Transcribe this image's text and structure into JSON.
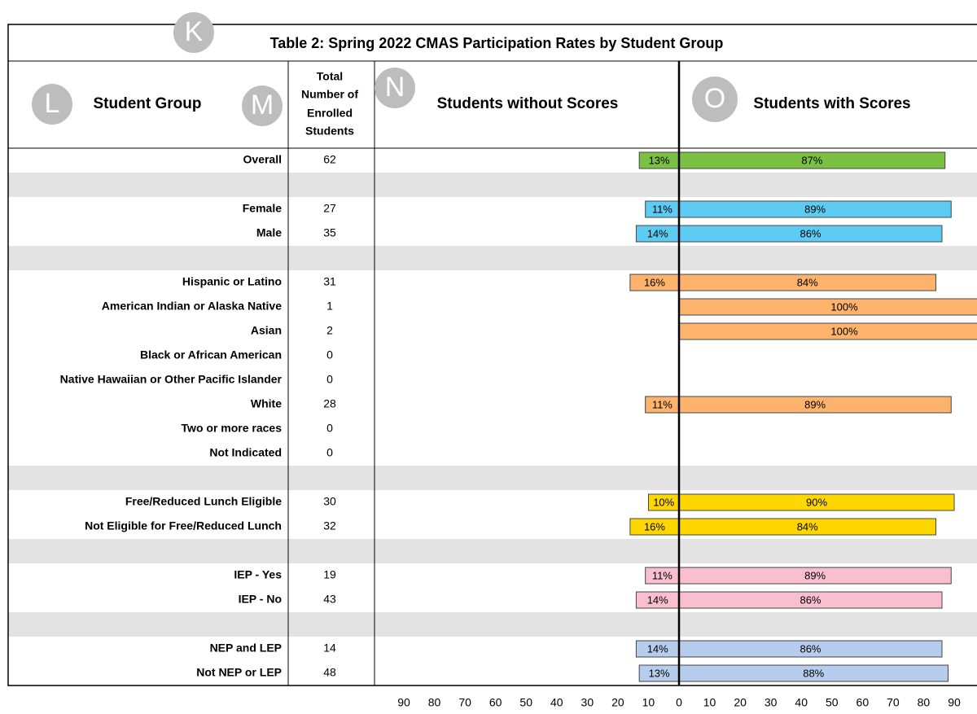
{
  "title": "Table 2: Spring 2022 CMAS Participation Rates by Student Group",
  "markers": [
    "K",
    "L",
    "M",
    "N",
    "O"
  ],
  "headers": {
    "group": "Student Group",
    "enrolled": [
      "Total",
      "Number of",
      "Enrolled",
      "Students"
    ],
    "without": "Students without Scores",
    "with": "Students with Scores"
  },
  "chart_data": {
    "type": "diverging-bar",
    "xlim": [
      0,
      90
    ],
    "left_xticks": [
      90,
      80,
      70,
      60,
      50,
      40,
      30,
      20,
      10
    ],
    "right_xticks": [
      0,
      10,
      20,
      30,
      40,
      50,
      60,
      70,
      80,
      90
    ],
    "groups": [
      {
        "color": "#7ac143",
        "rows": [
          {
            "label": "Overall",
            "enrolled": 62,
            "without": 13,
            "without_label": "13%",
            "with": 87,
            "with_label": "87%"
          }
        ]
      },
      {
        "color": "#5ecbf3",
        "rows": [
          {
            "label": "Female",
            "enrolled": 27,
            "without": 11,
            "without_label": "11%",
            "with": 89,
            "with_label": "89%"
          },
          {
            "label": "Male",
            "enrolled": 35,
            "without": 14,
            "without_label": "14%",
            "with": 86,
            "with_label": "86%"
          }
        ]
      },
      {
        "color": "#fdb36b",
        "rows": [
          {
            "label": "Hispanic or Latino",
            "enrolled": 31,
            "without": 16,
            "without_label": "16%",
            "with": 84,
            "with_label": "84%"
          },
          {
            "label": "American Indian or Alaska Native",
            "enrolled": 1,
            "with": 100,
            "with_label": "100%"
          },
          {
            "label": "Asian",
            "enrolled": 2,
            "with": 100,
            "with_label": "100%"
          },
          {
            "label": "Black or African American",
            "enrolled": 0
          },
          {
            "label": "Native Hawaiian or Other Pacific Islander",
            "enrolled": 0
          },
          {
            "label": "White",
            "enrolled": 28,
            "without": 11,
            "without_label": "11%",
            "with": 89,
            "with_label": "89%"
          },
          {
            "label": "Two or more races",
            "enrolled": 0
          },
          {
            "label": "Not Indicated",
            "enrolled": 0
          }
        ]
      },
      {
        "color": "#ffd700",
        "rows": [
          {
            "label": "Free/Reduced Lunch Eligible",
            "enrolled": 30,
            "without": 10,
            "without_label": "10%",
            "with": 90,
            "with_label": "90%"
          },
          {
            "label": "Not Eligible for Free/Reduced Lunch",
            "enrolled": 32,
            "without": 16,
            "without_label": "16%",
            "with": 84,
            "with_label": "84%"
          }
        ]
      },
      {
        "color": "#f9bfcf",
        "rows": [
          {
            "label": "IEP - Yes",
            "enrolled": 19,
            "without": 11,
            "without_label": "11%",
            "with": 89,
            "with_label": "89%"
          },
          {
            "label": "IEP - No",
            "enrolled": 43,
            "without": 14,
            "without_label": "14%",
            "with": 86,
            "with_label": "86%"
          }
        ]
      },
      {
        "color": "#b7cdee",
        "rows": [
          {
            "label": "NEP and LEP",
            "enrolled": 14,
            "without": 14,
            "without_label": "14%",
            "with": 86,
            "with_label": "86%"
          },
          {
            "label": "Not NEP or LEP",
            "enrolled": 48,
            "without": 13,
            "without_label": "13%",
            "with": 88,
            "with_label": "88%"
          }
        ]
      }
    ]
  }
}
